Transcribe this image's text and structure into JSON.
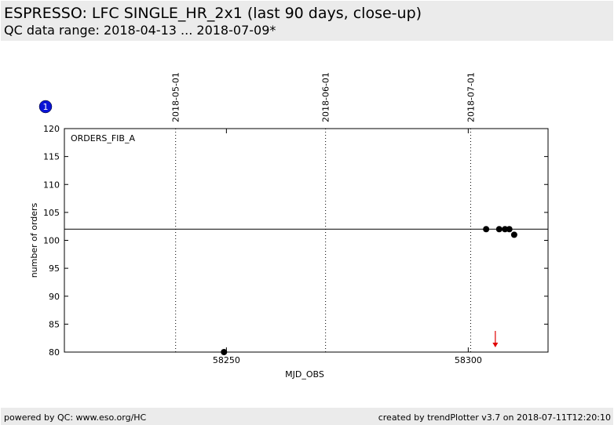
{
  "header": {
    "title": "ESPRESSO: LFC SINGLE_HR_2x1 (last 90 days, close-up)",
    "subtitle": "QC data range: 2018-04-13 ... 2018-07-09*"
  },
  "badge": "1",
  "chart_data": {
    "type": "scatter",
    "annotation": "ORDERS_FIB_A",
    "x_label": "MJD_OBS",
    "y_label": "number of orders",
    "xlim": [
      58216.5,
      58316.5
    ],
    "xticks": [
      58250,
      58300
    ],
    "ylim": [
      80,
      120
    ],
    "yticks": [
      80,
      85,
      90,
      95,
      100,
      105,
      110,
      115,
      120
    ],
    "date_lines": [
      {
        "value": 58239.5,
        "label": "2018-05-01"
      },
      {
        "value": 58270.5,
        "label": "2018-06-01"
      },
      {
        "value": 58300.5,
        "label": "2018-07-01"
      }
    ],
    "reference_line": 102,
    "outlier_arrows_x": [
      58305.6
    ],
    "outlier_color": "#e00000",
    "series": [
      {
        "color": "#000000",
        "x": [
          58249.5,
          58303.7,
          58306.4,
          58307.6,
          58308.5,
          58309.5
        ],
        "values": [
          80,
          102,
          102,
          102,
          102,
          101
        ]
      }
    ]
  },
  "footer": {
    "left": "powered by QC: www.eso.org/HC",
    "right": "created by trendPlotter v3.7 on 2018-07-11T12:20:10"
  }
}
